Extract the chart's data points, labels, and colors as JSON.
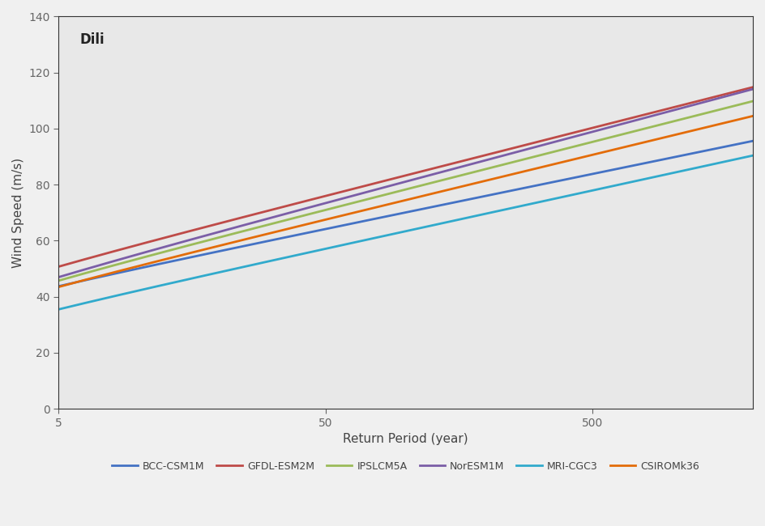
{
  "title": "Dili",
  "xlabel": "Return Period (year)",
  "ylabel": "Wind Speed (m/s)",
  "ylim": [
    0,
    140
  ],
  "xlim": [
    5,
    2000
  ],
  "xticks": [
    5,
    50,
    500
  ],
  "yticks": [
    0,
    20,
    40,
    60,
    80,
    100,
    120,
    140
  ],
  "background_color": "#e8e8e8",
  "fig_background_color": "#f0f0f0",
  "series": [
    {
      "name": "BCC-CSM1M",
      "color": "#4472c4",
      "mu": 31.0,
      "sigma": 8.5
    },
    {
      "name": "GFDL-ESM2M",
      "color": "#be4b48",
      "mu": 35.0,
      "sigma": 10.5
    },
    {
      "name": "IPSLCM5A",
      "color": "#9bbb59",
      "mu": 30.0,
      "sigma": 10.5
    },
    {
      "name": "NorESM1M",
      "color": "#7b5ea7",
      "mu": 30.5,
      "sigma": 11.0
    },
    {
      "name": "MRI-CGC3",
      "color": "#31aacc",
      "mu": 22.0,
      "sigma": 9.0
    },
    {
      "name": "CSIROMk36",
      "color": "#e36c09",
      "mu": 28.5,
      "sigma": 10.0
    }
  ],
  "title_fontsize": 12,
  "label_fontsize": 11,
  "tick_fontsize": 10,
  "legend_fontsize": 9,
  "line_width": 2.0
}
